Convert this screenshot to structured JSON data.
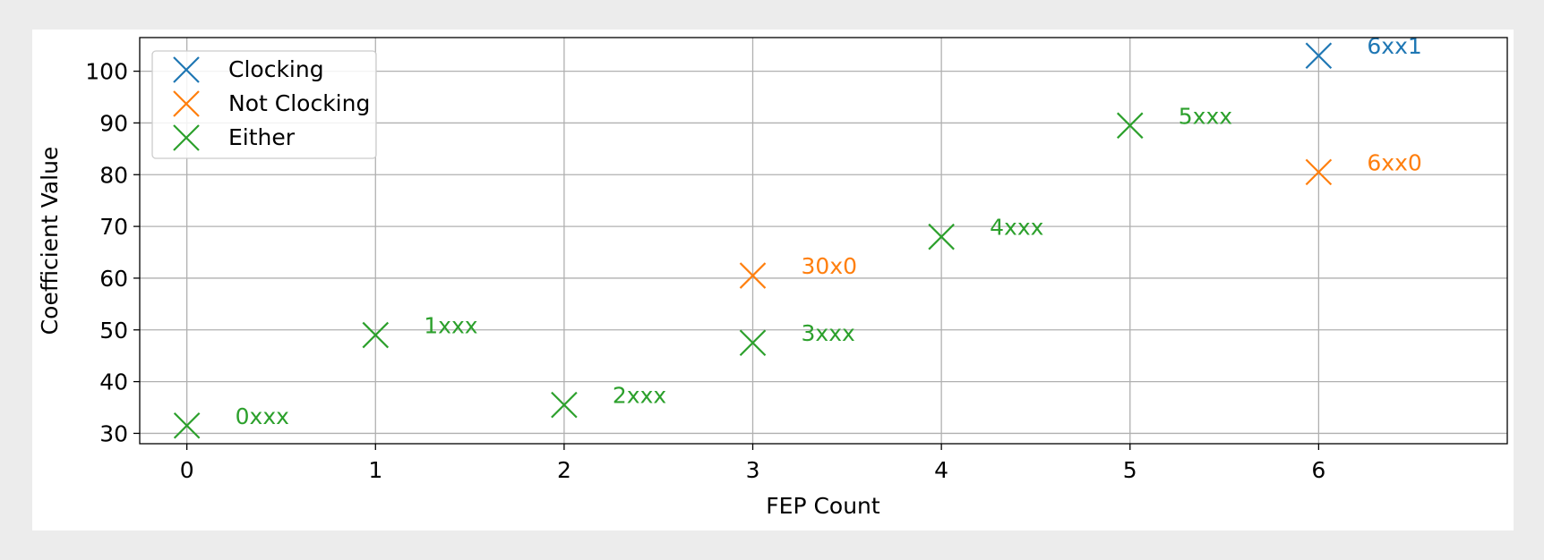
{
  "chart_data": {
    "type": "scatter",
    "title": "",
    "xlabel": "FEP Count",
    "ylabel": "Coefficient Value",
    "xlim": [
      -0.25,
      7.0
    ],
    "ylim": [
      28.0,
      106.5
    ],
    "xticks": [
      0,
      1,
      2,
      3,
      4,
      5,
      6
    ],
    "yticks": [
      30,
      40,
      50,
      60,
      70,
      80,
      90,
      100
    ],
    "grid": true,
    "legend_position": "upper-left",
    "marker": "x",
    "series": [
      {
        "name": "Clocking",
        "color": "#1f77b4",
        "points": [
          {
            "x": 6,
            "y": 103,
            "label": "6xx1"
          }
        ]
      },
      {
        "name": "Not Clocking",
        "color": "#ff7f0e",
        "points": [
          {
            "x": 3,
            "y": 60.5,
            "label": "30x0"
          },
          {
            "x": 6,
            "y": 80.5,
            "label": "6xx0"
          }
        ]
      },
      {
        "name": "Either",
        "color": "#2ca02c",
        "points": [
          {
            "x": 0,
            "y": 31.5,
            "label": "0xxx"
          },
          {
            "x": 1,
            "y": 49,
            "label": "1xxx"
          },
          {
            "x": 2,
            "y": 35.5,
            "label": "2xxx"
          },
          {
            "x": 3,
            "y": 47.5,
            "label": "3xxx"
          },
          {
            "x": 4,
            "y": 68,
            "label": "4xxx"
          },
          {
            "x": 5,
            "y": 89.5,
            "label": "5xxx"
          }
        ]
      }
    ]
  }
}
